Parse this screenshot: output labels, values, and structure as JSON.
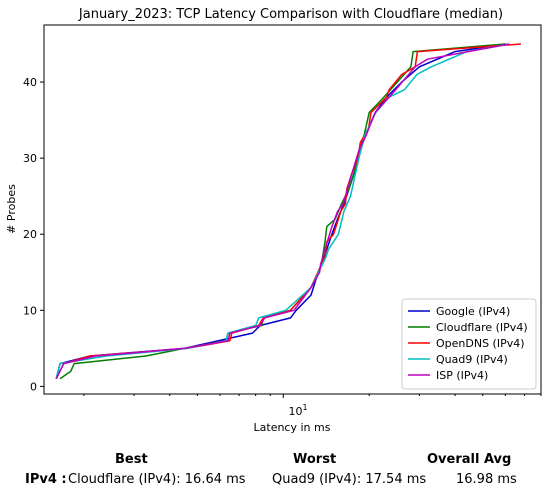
{
  "chart_data": {
    "type": "line",
    "title": "January_2023: TCP Latency Comparison with Cloudflare (median)",
    "xlabel": "Latency in ms",
    "ylabel": "# Probes",
    "xscale": "log",
    "xlim": [
      1.45,
      80
    ],
    "ylim": [
      -1,
      47.5
    ],
    "x_tick_label": {
      "base": "10",
      "exp": "1",
      "value": 10
    },
    "y_ticks": [
      0,
      10,
      20,
      30,
      40
    ],
    "grid": false,
    "legend_position": "lower right",
    "series": [
      {
        "name": "Google (IPv4)",
        "color": "#0000cc",
        "points": [
          [
            1.6,
            1
          ],
          [
            1.65,
            3
          ],
          [
            2.1,
            4
          ],
          [
            4.5,
            5
          ],
          [
            7.8,
            7
          ],
          [
            8.3,
            8
          ],
          [
            10.6,
            9
          ],
          [
            11.1,
            10
          ],
          [
            12.5,
            12
          ],
          [
            13,
            14
          ],
          [
            13.6,
            16
          ],
          [
            14.2,
            18
          ],
          [
            14.8,
            20
          ],
          [
            15.5,
            22
          ],
          [
            16.3,
            24
          ],
          [
            17,
            26
          ],
          [
            17.7,
            28
          ],
          [
            18.3,
            30
          ],
          [
            19,
            32
          ],
          [
            19.9,
            34
          ],
          [
            21,
            36
          ],
          [
            23,
            38
          ],
          [
            26,
            40
          ],
          [
            30,
            42
          ],
          [
            40,
            44
          ],
          [
            60,
            45
          ]
        ]
      },
      {
        "name": "Cloudflare (IPv4)",
        "color": "#008000",
        "points": [
          [
            1.65,
            1
          ],
          [
            1.8,
            2
          ],
          [
            1.85,
            3
          ],
          [
            3.3,
            4
          ],
          [
            4.5,
            5
          ],
          [
            6.3,
            6
          ],
          [
            6.4,
            7
          ],
          [
            8.4,
            8
          ],
          [
            8.5,
            9
          ],
          [
            10.6,
            10
          ],
          [
            12.5,
            13
          ],
          [
            13.6,
            16
          ],
          [
            14,
            19
          ],
          [
            14.2,
            21
          ],
          [
            15.2,
            22
          ],
          [
            16,
            24
          ],
          [
            17,
            26
          ],
          [
            18,
            29
          ],
          [
            18.5,
            31
          ],
          [
            19.2,
            33
          ],
          [
            20,
            36
          ],
          [
            22.5,
            38
          ],
          [
            28,
            42
          ],
          [
            28.5,
            44
          ],
          [
            60,
            45
          ]
        ]
      },
      {
        "name": "OpenDNS (IPv4)",
        "color": "#ff0000",
        "points": [
          [
            1.6,
            1
          ],
          [
            1.7,
            3
          ],
          [
            2.1,
            4
          ],
          [
            4.6,
            5
          ],
          [
            6.5,
            6
          ],
          [
            6.6,
            7
          ],
          [
            8.2,
            8
          ],
          [
            8.5,
            9
          ],
          [
            10.6,
            10
          ],
          [
            12.5,
            13
          ],
          [
            13.6,
            16
          ],
          [
            14,
            17
          ],
          [
            14.2,
            19
          ],
          [
            15,
            20
          ],
          [
            15.9,
            23
          ],
          [
            16.5,
            24
          ],
          [
            16.7,
            26
          ],
          [
            17.4,
            28
          ],
          [
            18.3,
            30
          ],
          [
            18.6,
            32
          ],
          [
            19.9,
            34
          ],
          [
            20.3,
            36
          ],
          [
            23,
            38
          ],
          [
            23.5,
            39
          ],
          [
            26,
            41
          ],
          [
            29,
            42
          ],
          [
            29.5,
            44
          ],
          [
            68,
            45
          ]
        ]
      },
      {
        "name": "Quad9 (IPv4)",
        "color": "#00bfbf",
        "points": [
          [
            1.6,
            1
          ],
          [
            1.65,
            3
          ],
          [
            2.4,
            4
          ],
          [
            4.6,
            5
          ],
          [
            6.3,
            6
          ],
          [
            6.4,
            7
          ],
          [
            8,
            8
          ],
          [
            8.2,
            9
          ],
          [
            10.2,
            10
          ],
          [
            12.5,
            13
          ],
          [
            13.7,
            16
          ],
          [
            14.1,
            17
          ],
          [
            14.4,
            18
          ],
          [
            15.6,
            20
          ],
          [
            16.3,
            23
          ],
          [
            17.2,
            25
          ],
          [
            17.9,
            28
          ],
          [
            18.4,
            30
          ],
          [
            19.3,
            33
          ],
          [
            21.1,
            36
          ],
          [
            23.4,
            38
          ],
          [
            26.6,
            39
          ],
          [
            29.4,
            41
          ],
          [
            33,
            42
          ],
          [
            44,
            44
          ],
          [
            62,
            45
          ]
        ]
      },
      {
        "name": "ISP (IPv4)",
        "color": "#bf00bf",
        "points": [
          [
            1.6,
            1
          ],
          [
            1.7,
            3
          ],
          [
            2.2,
            4
          ],
          [
            4.5,
            5
          ],
          [
            6.4,
            6
          ],
          [
            6.5,
            7
          ],
          [
            8.3,
            8
          ],
          [
            8.6,
            9
          ],
          [
            10.9,
            10
          ],
          [
            12.5,
            13
          ],
          [
            13.4,
            15
          ],
          [
            13.5,
            16
          ],
          [
            14,
            18
          ],
          [
            14.8,
            21
          ],
          [
            15.5,
            23
          ],
          [
            16.2,
            24
          ],
          [
            16.8,
            26
          ],
          [
            17.4,
            28
          ],
          [
            18.4,
            31
          ],
          [
            19.5,
            33
          ],
          [
            21,
            36
          ],
          [
            23.5,
            38
          ],
          [
            29,
            42
          ],
          [
            32,
            43
          ],
          [
            62,
            45
          ]
        ]
      }
    ]
  },
  "stats": {
    "headers": {
      "best": "Best",
      "worst": "Worst",
      "avg": "Overall Avg"
    },
    "row_label": "IPv4 :",
    "best": "Cloudflare (IPv4): 16.64 ms",
    "worst": "Quad9 (IPv4): 17.54 ms",
    "avg": "16.98 ms"
  }
}
